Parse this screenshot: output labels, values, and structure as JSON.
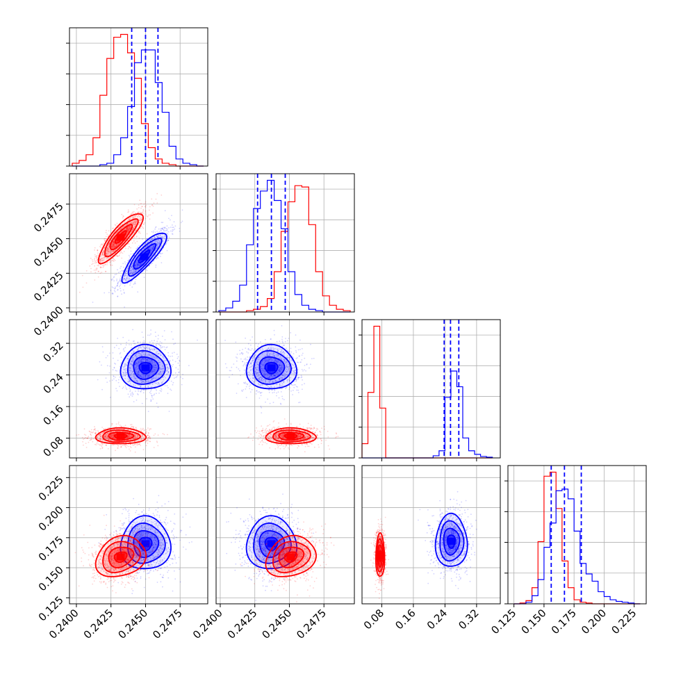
{
  "chart_data": {
    "type": "corner",
    "grid": true,
    "colors": {
      "series_a": "#ff0000",
      "series_b": "#0000ff"
    },
    "series": [
      {
        "color": "#ff0000"
      },
      {
        "color": "#0000ff"
      }
    ],
    "params": [
      {
        "range": [
          0.2395,
          0.2495
        ],
        "ticks": [
          "0.2400",
          "0.2425",
          "0.2450",
          "0.2475"
        ],
        "tick_values": [
          0.24,
          0.2425,
          0.245,
          0.2475
        ]
      },
      {
        "range": [
          0.2397,
          0.2497
        ],
        "ticks": [
          "0.2400",
          "0.2425",
          "0.2450",
          "0.2475"
        ],
        "tick_values": [
          0.24,
          0.2425,
          0.245,
          0.2475
        ]
      },
      {
        "range": [
          0.03,
          0.38
        ],
        "ticks": [
          "0.08",
          "0.16",
          "0.24",
          "0.32"
        ],
        "tick_values": [
          0.08,
          0.16,
          0.24,
          0.32
        ]
      },
      {
        "range": [
          0.12,
          0.235
        ],
        "ticks": [
          "0.125",
          "0.150",
          "0.175",
          "0.200",
          "0.225"
        ],
        "tick_values": [
          0.125,
          0.15,
          0.175,
          0.2,
          0.225
        ]
      }
    ],
    "diagonal": [
      {
        "bins": [
          0.2397,
          0.2402,
          0.2407,
          0.2412,
          0.2417,
          0.2422,
          0.2427,
          0.2432,
          0.2437,
          0.2442,
          0.2447,
          0.2452,
          0.2457,
          0.2462,
          0.2467,
          0.2472,
          0.2477,
          0.2482,
          0.2487,
          0.2492
        ],
        "red": [
          2,
          4,
          8,
          20,
          50,
          76,
          91,
          93,
          80,
          62,
          30,
          13,
          5,
          2,
          1,
          0,
          0,
          0,
          0
        ],
        "blue": [
          0,
          0,
          0,
          0,
          1,
          2,
          8,
          20,
          42,
          73,
          82,
          82,
          59,
          38,
          14,
          5,
          2,
          1,
          0
        ],
        "quantiles": [
          0.244,
          0.245,
          0.2459
        ]
      },
      {
        "bins": [
          0.2399,
          0.2404,
          0.2409,
          0.2414,
          0.2419,
          0.2424,
          0.2429,
          0.2434,
          0.2439,
          0.2444,
          0.2449,
          0.2454,
          0.2459,
          0.2464,
          0.2469,
          0.2474,
          0.2479,
          0.2484,
          0.2489,
          0.2494
        ],
        "red": [
          0,
          0,
          0,
          0,
          1,
          2,
          4,
          10,
          30,
          60,
          82,
          94,
          93,
          65,
          30,
          12,
          5,
          2,
          1
        ],
        "blue": [
          1,
          3,
          8,
          20,
          50,
          77,
          90,
          98,
          83,
          62,
          30,
          13,
          5,
          2,
          1,
          0,
          0,
          0,
          0
        ],
        "quantiles": [
          0.2427,
          0.2437,
          0.2447
        ]
      },
      {
        "bins": [
          0.03,
          0.045,
          0.06,
          0.075,
          0.09,
          0.105,
          0.12,
          0.135,
          0.15,
          0.165,
          0.18,
          0.195,
          0.21,
          0.225,
          0.24,
          0.255,
          0.27,
          0.285,
          0.3,
          0.315,
          0.33,
          0.345,
          0.36
        ],
        "red": [
          20,
          92,
          185,
          70,
          0,
          0,
          0,
          0,
          0,
          0,
          0,
          0,
          0,
          0,
          0,
          0,
          0,
          0,
          0,
          0,
          0,
          0
        ],
        "blue": [
          0,
          0,
          0,
          0,
          0,
          0,
          0,
          0,
          0,
          0,
          0,
          0,
          3,
          10,
          85,
          122,
          100,
          28,
          10,
          5,
          2,
          1
        ],
        "quantiles": [
          0.238,
          0.254,
          0.275
        ]
      },
      {
        "bins": [
          0.125,
          0.13,
          0.135,
          0.14,
          0.145,
          0.15,
          0.155,
          0.16,
          0.165,
          0.17,
          0.175,
          0.18,
          0.185,
          0.19,
          0.195,
          0.2,
          0.205,
          0.21,
          0.215,
          0.22,
          0.225,
          0.23
        ],
        "red": [
          0,
          1,
          4,
          20,
          77,
          158,
          163,
          118,
          53,
          20,
          5,
          2,
          1,
          0,
          0,
          0,
          0,
          0,
          0,
          0,
          0
        ],
        "blue": [
          0,
          0,
          2,
          10,
          30,
          70,
          100,
          140,
          142,
          130,
          90,
          50,
          37,
          28,
          15,
          9,
          5,
          3,
          2,
          1,
          0
        ],
        "quantiles": [
          0.156,
          0.167,
          0.181
        ]
      }
    ],
    "pairs": [
      {
        "row": 1,
        "col": 0,
        "red": {
          "mean": [
            0.2432,
            0.2451
          ],
          "sd": [
            0.0008,
            0.0009
          ],
          "rho": 0.85
        },
        "blue": {
          "mean": [
            0.2449,
            0.2437
          ],
          "sd": [
            0.0008,
            0.0009
          ],
          "rho": 0.85
        }
      },
      {
        "row": 2,
        "col": 0,
        "red": {
          "mean": [
            0.2432,
            0.085
          ],
          "sd": [
            0.0009,
            0.01
          ],
          "rho": 0.0
        },
        "blue": {
          "mean": [
            0.245,
            0.258
          ],
          "sd": [
            0.0009,
            0.028
          ],
          "rho": 0.0
        }
      },
      {
        "row": 2,
        "col": 1,
        "red": {
          "mean": [
            0.2451,
            0.085
          ],
          "sd": [
            0.0009,
            0.01
          ],
          "rho": 0.0
        },
        "blue": {
          "mean": [
            0.2437,
            0.258
          ],
          "sd": [
            0.0009,
            0.028
          ],
          "rho": 0.0
        }
      },
      {
        "row": 3,
        "col": 0,
        "red": {
          "mean": [
            0.2432,
            0.159
          ],
          "sd": [
            0.0009,
            0.0085
          ],
          "rho": 0.2
        },
        "blue": {
          "mean": [
            0.245,
            0.17
          ],
          "sd": [
            0.0009,
            0.011
          ],
          "rho": 0.0
        }
      },
      {
        "row": 3,
        "col": 1,
        "red": {
          "mean": [
            0.2451,
            0.159
          ],
          "sd": [
            0.0009,
            0.0085
          ],
          "rho": 0.2
        },
        "blue": {
          "mean": [
            0.2437,
            0.17
          ],
          "sd": [
            0.0009,
            0.011
          ],
          "rho": 0.0
        }
      },
      {
        "row": 3,
        "col": 2,
        "red": {
          "mean": [
            0.076,
            0.16
          ],
          "sd": [
            0.0055,
            0.009
          ],
          "rho": 0.0
        },
        "blue": {
          "mean": [
            0.256,
            0.172
          ],
          "sd": [
            0.02,
            0.011
          ],
          "rho": 0.0
        }
      }
    ]
  }
}
